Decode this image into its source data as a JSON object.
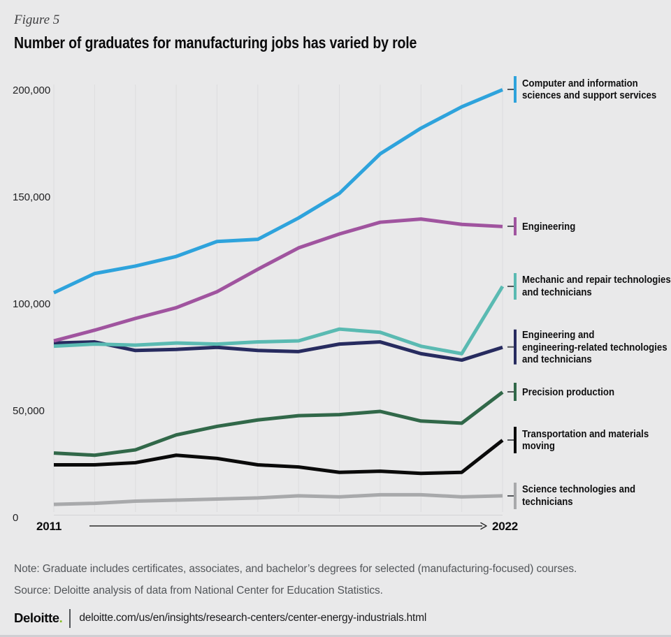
{
  "figure_label": "Figure 5",
  "title": "Number of graduates for manufacturing jobs has varied by role",
  "chart_data": {
    "type": "line",
    "x": [
      2011,
      2012,
      2013,
      2014,
      2015,
      2016,
      2017,
      2018,
      2019,
      2020,
      2021,
      2022
    ],
    "x_axis": {
      "start_label": "2011",
      "end_label": "2022"
    },
    "ylim": [
      0,
      200000
    ],
    "yticks": [
      0,
      50000,
      100000,
      150000,
      200000
    ],
    "ytick_labels": [
      "0",
      "50,000",
      "100,000",
      "150,000",
      "200,000"
    ],
    "grid": "vertical-yearly",
    "legend_position": "right",
    "series": [
      {
        "name": "Computer and information sciences and support services",
        "color": "#2EA3DC",
        "values": [
          105500,
          114500,
          118000,
          122500,
          129500,
          130500,
          140500,
          152000,
          170500,
          182500,
          192500,
          200500
        ],
        "label_lines": [
          "Computer and information",
          "sciences and support services"
        ]
      },
      {
        "name": "Engineering",
        "color": "#A0549F",
        "values": [
          83000,
          88000,
          93500,
          98500,
          106000,
          116500,
          126500,
          133000,
          138500,
          140000,
          137500,
          136500
        ],
        "label_lines": [
          "Engineering"
        ]
      },
      {
        "name": "Mechanic and repair technologies and technicians",
        "color": "#5ABAB2",
        "values": [
          80500,
          81500,
          81000,
          82000,
          81500,
          82500,
          83000,
          88500,
          87000,
          80500,
          77000,
          108500
        ],
        "label_lines": [
          "Mechanic and repair technologies",
          "and technicians"
        ]
      },
      {
        "name": "Engineering and engineering-related technologies and technicians",
        "color": "#272B5F",
        "values": [
          82000,
          82500,
          78500,
          79000,
          80000,
          78500,
          78000,
          81500,
          82500,
          77000,
          74000,
          80000
        ],
        "label_lines": [
          "Engineering and",
          "engineering-related technologies",
          "and technicians"
        ]
      },
      {
        "name": "Precision production",
        "color": "#316849",
        "values": [
          30500,
          29500,
          32000,
          39000,
          43000,
          46000,
          48000,
          48500,
          50000,
          45500,
          44500,
          59000
        ],
        "label_lines": [
          "Precision production"
        ]
      },
      {
        "name": "Transportation and materials moving",
        "color": "#0A0A0A",
        "values": [
          25000,
          25000,
          26000,
          29500,
          28000,
          25000,
          24000,
          21500,
          22000,
          21000,
          21500,
          36500
        ],
        "label_lines": [
          "Transportation and materials",
          "moving"
        ]
      },
      {
        "name": "Science technologies and technicians",
        "color": "#A8A9AB",
        "values": [
          6500,
          7000,
          8000,
          8500,
          9000,
          9500,
          10500,
          10000,
          11000,
          11000,
          10000,
          10500
        ],
        "label_lines": [
          "Science technologies and",
          "technicians"
        ]
      }
    ]
  },
  "note": "Note: Graduate includes certificates, associates, and bachelor’s degrees for selected (manufacturing-focused) courses.",
  "source": "Source: Deloitte analysis of data from National Center for Education Statistics.",
  "footer": {
    "brand": "Deloitte",
    "brand_dot": ".",
    "url": "deloitte.com/us/en/insights/research-centers/center-energy-industrials.html"
  },
  "colors": {
    "background": "#E9E9EA",
    "gridline": "#DCDCDE",
    "axis_arrow": "#2B2B2B",
    "secondary_text": "#53565A",
    "deloitte_green": "#86BC25"
  }
}
